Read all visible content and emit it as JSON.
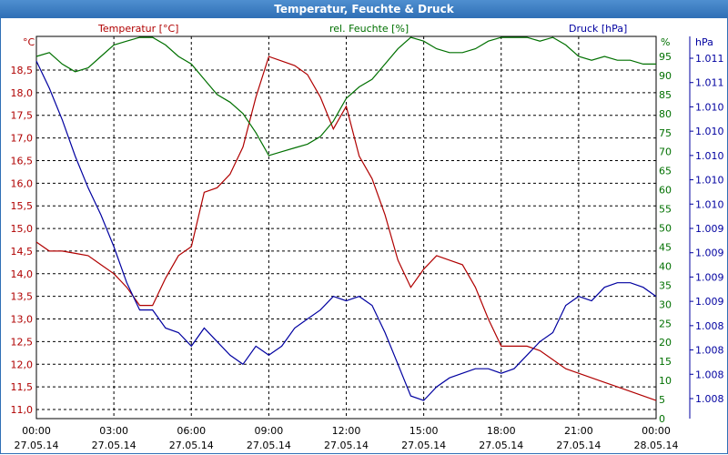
{
  "window": {
    "title": "Temperatur, Feuchte & Druck"
  },
  "chart_data": {
    "type": "line",
    "title": "Temperatur, Feuchte & Druck",
    "grid": true,
    "x_ticks": [
      {
        "time": "00:00",
        "date": "27.05.14"
      },
      {
        "time": "03:00",
        "date": "27.05.14"
      },
      {
        "time": "06:00",
        "date": "27.05.14"
      },
      {
        "time": "09:00",
        "date": "27.05.14"
      },
      {
        "time": "12:00",
        "date": "27.05.14"
      },
      {
        "time": "15:00",
        "date": "27.05.14"
      },
      {
        "time": "18:00",
        "date": "27.05.14"
      },
      {
        "time": "21:00",
        "date": "27.05.14"
      },
      {
        "time": "00:00",
        "date": "28.05.14"
      }
    ],
    "x_hours": [
      0,
      0.5,
      1,
      1.5,
      2,
      2.5,
      3,
      3.5,
      4,
      4.5,
      5,
      5.5,
      6,
      6.5,
      7,
      7.5,
      8,
      8.5,
      9,
      9.5,
      10,
      10.5,
      11,
      11.5,
      12,
      12.5,
      13,
      13.5,
      14,
      14.5,
      15,
      15.5,
      16,
      16.5,
      17,
      17.5,
      18,
      18.5,
      19,
      19.5,
      20,
      20.5,
      21,
      21.5,
      22,
      22.5,
      23,
      23.5,
      24
    ],
    "axes": {
      "left": {
        "label": "°C",
        "ylim": [
          11.0,
          18.5
        ],
        "ticks": [
          "11,0",
          "11,5",
          "12,0",
          "12,5",
          "13,0",
          "13,5",
          "14,0",
          "14,5",
          "15,0",
          "15,5",
          "16,0",
          "16,5",
          "17,0",
          "17,5",
          "18,0",
          "18,5"
        ],
        "color": "#b00000"
      },
      "right1": {
        "label": "%",
        "ylim": [
          0,
          95
        ],
        "ticks": [
          "0",
          "5",
          "10",
          "15",
          "20",
          "25",
          "30",
          "35",
          "40",
          "45",
          "50",
          "55",
          "60",
          "65",
          "70",
          "75",
          "80",
          "85",
          "90",
          "95"
        ],
        "color": "#007000"
      },
      "right2": {
        "label": "hPa",
        "ticks": [
          "1.011",
          "1.011",
          "1.010",
          "1.010",
          "1.010",
          "1.010",
          "1.010",
          "1.009",
          "1.009",
          "1.009",
          "1.009",
          "1.008",
          "1.008",
          "1.008",
          "1.008"
        ],
        "color": "#0000a0"
      }
    },
    "series": [
      {
        "name": "Temperatur [°C]",
        "axis": "left",
        "color": "#b00000",
        "values": [
          14.7,
          14.5,
          14.5,
          14.45,
          14.4,
          14.2,
          14.0,
          13.7,
          13.3,
          13.3,
          13.9,
          14.4,
          14.6,
          15.8,
          15.9,
          16.2,
          16.8,
          17.9,
          18.8,
          18.7,
          18.6,
          18.4,
          17.9,
          17.2,
          17.7,
          16.6,
          16.1,
          15.3,
          14.3,
          13.7,
          14.1,
          14.4,
          14.3,
          14.2,
          13.7,
          13.0,
          12.4,
          12.4,
          12.4,
          12.3,
          12.1,
          11.9,
          11.8,
          11.7,
          11.6,
          11.5,
          11.4,
          11.3,
          11.2
        ]
      },
      {
        "name": "rel. Feuchte [%]",
        "axis": "right1",
        "color": "#007000",
        "values": [
          95,
          96,
          93,
          91,
          92,
          95,
          98,
          99,
          100,
          100,
          98,
          95,
          93,
          89,
          85,
          83,
          80,
          75,
          69,
          70,
          71,
          72,
          74,
          78,
          84,
          87,
          89,
          93,
          97,
          100,
          99,
          97,
          96,
          96,
          97,
          99,
          100,
          100,
          100,
          99,
          100,
          98,
          95,
          94,
          95,
          94,
          94,
          93,
          93
        ]
      },
      {
        "name": "Druck [hPa]",
        "axis": "right2",
        "color": "#0000a0",
        "values": [
          18.7,
          18.1,
          17.4,
          16.6,
          15.9,
          15.3,
          14.6,
          13.8,
          13.2,
          13.2,
          12.8,
          12.7,
          12.4,
          12.8,
          12.5,
          12.2,
          12.0,
          12.4,
          12.2,
          12.4,
          12.8,
          13.0,
          13.2,
          13.5,
          13.4,
          13.5,
          13.3,
          12.7,
          12.0,
          11.3,
          11.2,
          11.5,
          11.7,
          11.8,
          11.9,
          11.9,
          11.8,
          11.9,
          12.2,
          12.5,
          12.7,
          13.3,
          13.5,
          13.4,
          13.7,
          13.8,
          13.8,
          13.7,
          13.5
        ]
      }
    ]
  }
}
